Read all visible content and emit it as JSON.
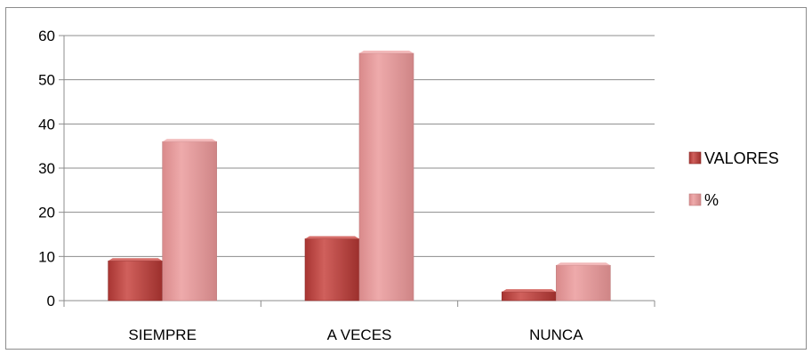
{
  "chart_data": {
    "type": "bar",
    "categories": [
      "SIEMPRE",
      "A VECES",
      "NUNCA"
    ],
    "series": [
      {
        "name": "VALORES",
        "values": [
          9,
          14,
          2
        ],
        "color": "#c0504d"
      },
      {
        "name": "%",
        "values": [
          36,
          56,
          8
        ],
        "color": "#e6999a"
      }
    ],
    "title": "",
    "xlabel": "",
    "ylabel": "",
    "ylim": [
      0,
      60
    ],
    "yticks": [
      0,
      10,
      20,
      30,
      40,
      50,
      60
    ],
    "grid": true,
    "legend_position": "right"
  }
}
